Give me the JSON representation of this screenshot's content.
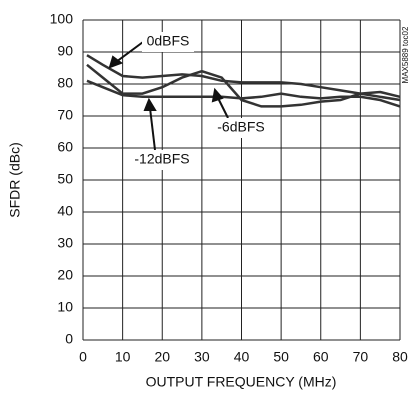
{
  "chart_data": {
    "type": "line",
    "x_label": "OUTPUT FREQUENCY (MHz)",
    "y_label": "SFDR (dBc)",
    "side_label": "MAX5889 toc02",
    "x": [
      1,
      5,
      10,
      15,
      20,
      25,
      30,
      35,
      40,
      45,
      50,
      55,
      60,
      65,
      70,
      75,
      80
    ],
    "series": [
      {
        "name": "0dBFS",
        "color": "#333333",
        "values": [
          89,
          86,
          82.5,
          82,
          82.5,
          83,
          82.5,
          81,
          80.5,
          80.5,
          80.5,
          80,
          79,
          78,
          77,
          76,
          75
        ]
      },
      {
        "name": "-6dBFS",
        "color": "#333333",
        "values": [
          86,
          82,
          77,
          77,
          79,
          82,
          84,
          82,
          75,
          73,
          73,
          73.5,
          74.5,
          75,
          77,
          77.5,
          76
        ]
      },
      {
        "name": "-12dBFS",
        "color": "#333333",
        "values": [
          81,
          79,
          76.5,
          76,
          76,
          76,
          76,
          76,
          75.5,
          76,
          77,
          76,
          75.5,
          76,
          76,
          75,
          73
        ]
      }
    ],
    "xlim": [
      0,
      80
    ],
    "xticks": [
      0,
      10,
      20,
      30,
      40,
      50,
      60,
      70,
      80
    ],
    "ylim": [
      0,
      100
    ],
    "yticks": [
      0,
      10,
      20,
      30,
      40,
      50,
      60,
      70,
      80,
      90,
      100
    ],
    "grid": true
  }
}
